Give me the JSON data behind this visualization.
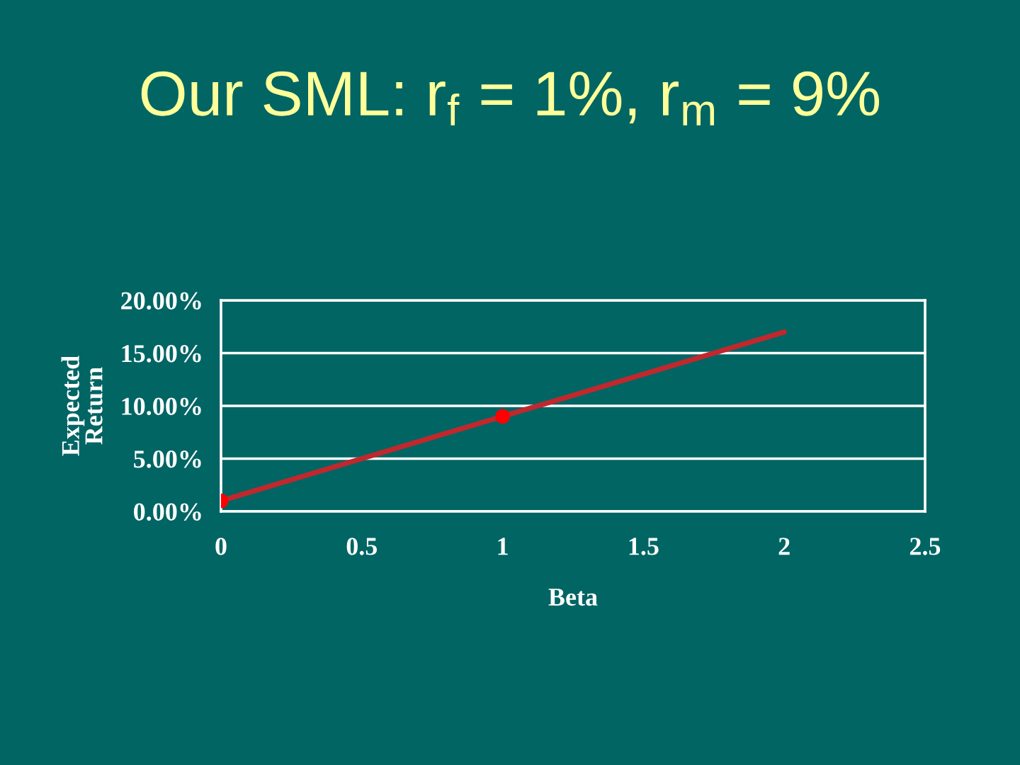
{
  "chart_data": {
    "type": "line",
    "title": "Our SML: r$_{f}$ = 1%, r$_{m}$ = 9%",
    "xlabel": "Beta",
    "ylabel": "Expected\nReturn",
    "series": [
      {
        "color": "#c0282d",
        "x": [
          0,
          2
        ],
        "values": [
          1,
          17
        ],
        "marker": "none",
        "line_style": "solid"
      },
      {
        "type": "scatter",
        "color": "#ff0000",
        "x": [
          0,
          1
        ],
        "values": [
          1,
          9
        ],
        "marker": "circle"
      }
    ],
    "xlim": [
      0,
      2.5
    ],
    "xticks": [
      0,
      0.5,
      1,
      1.5,
      2,
      2.5
    ],
    "ylim": [
      0,
      20
    ],
    "yticks": [
      {
        "value": 0,
        "label": "0.00%"
      },
      {
        "value": 5,
        "label": "5.00%"
      },
      {
        "value": 10,
        "label": "10.00%"
      },
      {
        "value": 15,
        "label": "15.00%"
      },
      {
        "value": 20,
        "label": "20.00%"
      }
    ],
    "grid": "y"
  }
}
